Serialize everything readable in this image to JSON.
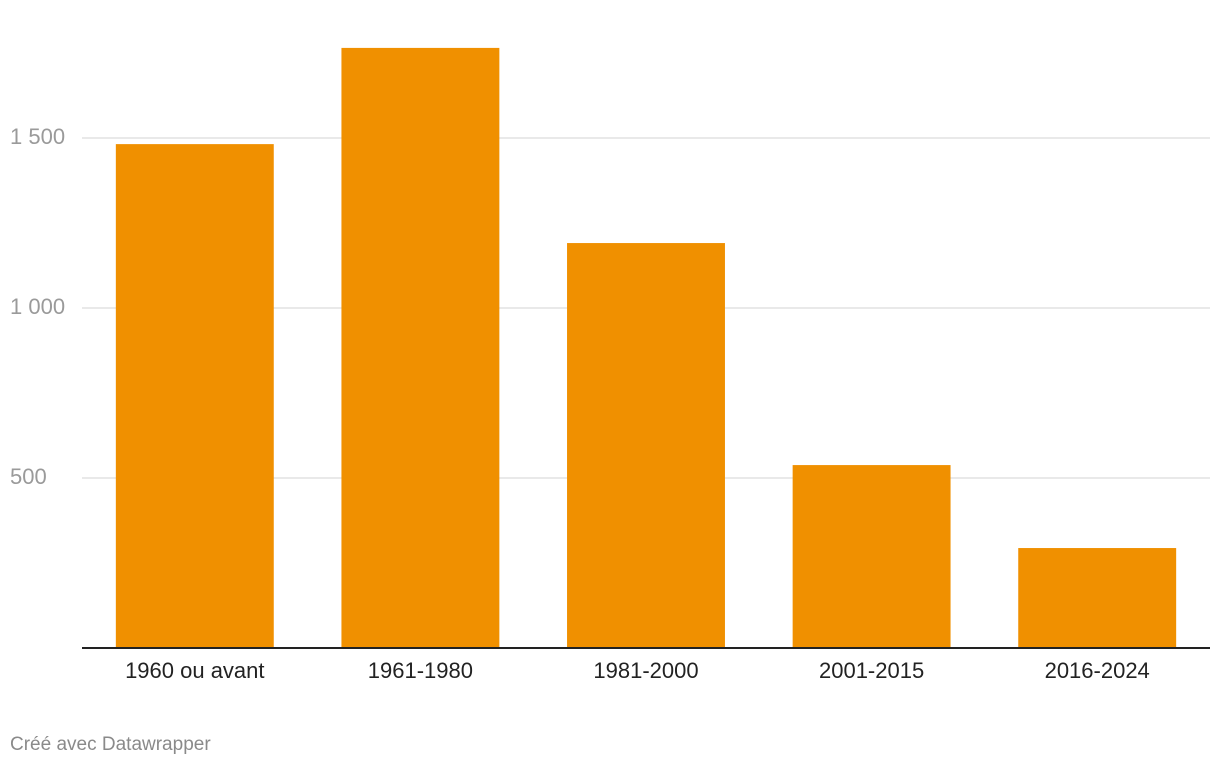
{
  "chart_data": {
    "type": "bar",
    "categories": [
      "1960 ou avant",
      "1961-1980",
      "1981-2000",
      "2001-2015",
      "2016-2024"
    ],
    "values": [
      1482,
      1765,
      1191,
      538,
      294
    ],
    "color": "#f09000",
    "ylim": [
      0,
      1800
    ],
    "yticks": [
      500,
      {
        "value": 1000,
        "label": "1 000"
      },
      {
        "value": 1500,
        "label": "1 500"
      }
    ],
    "grid": true,
    "credit": "Créé avec Datawrapper"
  }
}
